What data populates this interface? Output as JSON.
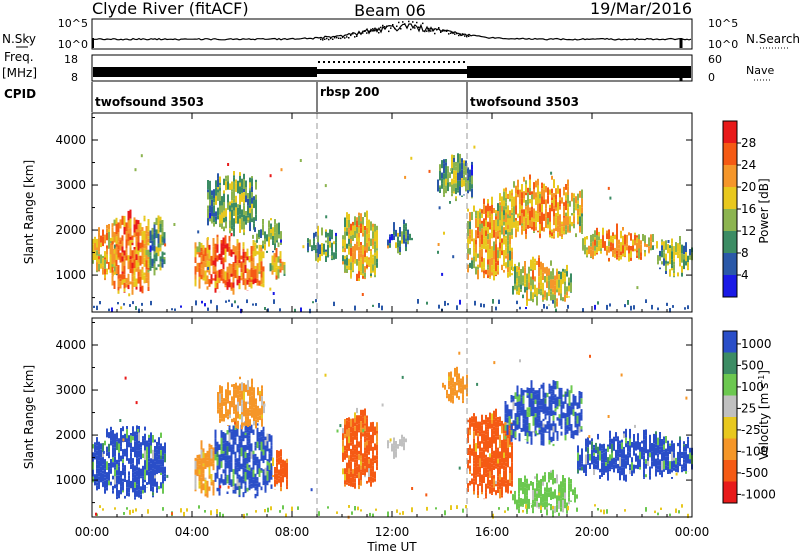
{
  "header": {
    "station": "Clyde River (fitACF)",
    "beam": "Beam 06",
    "date": "19/Mar/2016"
  },
  "noise_panel": {
    "left_label": "N.Sky",
    "right_label": "N.Search",
    "left_ticks": [
      "10^5",
      "10^0"
    ],
    "right_ticks": [
      "10^5",
      "10^0"
    ]
  },
  "freq_panel": {
    "left_label_line1": "Freq.",
    "left_label_line2": "[MHz]",
    "right_label": "Nave",
    "left_ticks": [
      "18",
      "8"
    ],
    "right_ticks": [
      "60",
      "0"
    ]
  },
  "cpid": {
    "label": "CPID",
    "segments": [
      {
        "name": "twofsound 3503",
        "start": 0,
        "end": 9
      },
      {
        "name": "rbsp 200",
        "start": 9,
        "end": 15
      },
      {
        "name": "twofsound 3503",
        "start": 15,
        "end": 24
      }
    ]
  },
  "power_colorbar": {
    "label": "Power [dB]",
    "ticks": [
      "28",
      "24",
      "20",
      "16",
      "12",
      "8",
      "4"
    ],
    "colors": [
      "#e81a1a",
      "#f55a14",
      "#f5962a",
      "#e8c81e",
      "#8cb450",
      "#3c8c64",
      "#2a58a8",
      "#1a1ae6"
    ]
  },
  "velocity_colorbar": {
    "label_main": "Velocity  [m s",
    "label_sup": "-1",
    "label_end": "]",
    "ticks": [
      "1000",
      "500",
      "100",
      "25",
      "-25",
      "-100",
      "-500",
      "-1000"
    ],
    "colors": [
      "#2a4ec8",
      "#3c8c64",
      "#6cc850",
      "#c0c0c0",
      "#e8c81e",
      "#f59628",
      "#f55a14",
      "#e81a1a"
    ]
  },
  "chart_data": [
    {
      "type": "heatmap",
      "title": "Power",
      "ylabel": "Slant Range [km]",
      "xlabel": "Time UT",
      "ylim": [
        180,
        4600
      ],
      "yticks": [
        1000,
        2000,
        3000,
        4000
      ],
      "xlim": [
        0,
        24
      ],
      "xticks": [
        "00:00",
        "04:00",
        "08:00",
        "12:00",
        "16:00",
        "20:00",
        "00:00"
      ],
      "blobs": [
        {
          "t0": 0.0,
          "t1": 1.0,
          "r0": 1000,
          "r1": 2000,
          "level": 0.6
        },
        {
          "t0": 0.7,
          "t1": 2.3,
          "r0": 650,
          "r1": 2300,
          "level": 0.72
        },
        {
          "t0": 2.3,
          "t1": 2.9,
          "r0": 1100,
          "r1": 2200,
          "level": 0.3
        },
        {
          "t0": 4.1,
          "t1": 6.9,
          "r0": 700,
          "r1": 1800,
          "level": 0.75
        },
        {
          "t0": 4.6,
          "t1": 6.6,
          "r0": 2000,
          "r1": 3200,
          "level": 0.35
        },
        {
          "t0": 6.4,
          "t1": 7.6,
          "r0": 1600,
          "r1": 2200,
          "level": 0.3
        },
        {
          "t0": 7.1,
          "t1": 7.7,
          "r0": 900,
          "r1": 1600,
          "level": 0.55
        },
        {
          "t0": 8.6,
          "t1": 9.8,
          "r0": 1400,
          "r1": 2000,
          "level": 0.3
        },
        {
          "t0": 10.0,
          "t1": 11.4,
          "r0": 1000,
          "r1": 2400,
          "level": 0.55
        },
        {
          "t0": 11.8,
          "t1": 12.8,
          "r0": 1600,
          "r1": 2100,
          "level": 0.25
        },
        {
          "t0": 13.8,
          "t1": 15.2,
          "r0": 2700,
          "r1": 3600,
          "level": 0.3
        },
        {
          "t0": 15.0,
          "t1": 16.8,
          "r0": 1000,
          "r1": 2600,
          "level": 0.6
        },
        {
          "t0": 16.2,
          "t1": 19.6,
          "r0": 1900,
          "r1": 3100,
          "level": 0.6
        },
        {
          "t0": 16.8,
          "t1": 19.2,
          "r0": 400,
          "r1": 1300,
          "level": 0.5
        },
        {
          "t0": 19.6,
          "t1": 22.6,
          "r0": 1400,
          "r1": 2000,
          "level": 0.6
        },
        {
          "t0": 22.6,
          "t1": 24.0,
          "r0": 1100,
          "r1": 1800,
          "level": 0.35
        }
      ]
    },
    {
      "type": "heatmap",
      "title": "Velocity",
      "ylabel": "Slant Range [km]",
      "xlabel": "Time UT",
      "ylim": [
        180,
        4600
      ],
      "yticks": [
        1000,
        2000,
        3000,
        4000
      ],
      "xlim": [
        0,
        24
      ],
      "xticks": [
        "00:00",
        "04:00",
        "08:00",
        "12:00",
        "16:00",
        "20:00",
        "00:00"
      ],
      "blobs": [
        {
          "t0": 0.0,
          "t1": 2.9,
          "r0": 700,
          "r1": 2100,
          "velocity": 900
        },
        {
          "t0": 4.1,
          "t1": 4.9,
          "r0": 700,
          "r1": 1800,
          "velocity": -200
        },
        {
          "t0": 4.9,
          "t1": 7.2,
          "r0": 700,
          "r1": 2200,
          "velocity": 800
        },
        {
          "t0": 5.0,
          "t1": 6.9,
          "r0": 2200,
          "r1": 3200,
          "velocity": -80
        },
        {
          "t0": 7.2,
          "t1": 7.8,
          "r0": 800,
          "r1": 1600,
          "velocity": -700
        },
        {
          "t0": 10.0,
          "t1": 11.4,
          "r0": 900,
          "r1": 2500,
          "velocity": -600
        },
        {
          "t0": 11.8,
          "t1": 12.6,
          "r0": 1600,
          "r1": 2000,
          "velocity": 20
        },
        {
          "t0": 14.0,
          "t1": 15.0,
          "r0": 2800,
          "r1": 3400,
          "velocity": -300
        },
        {
          "t0": 15.0,
          "t1": 16.8,
          "r0": 700,
          "r1": 2500,
          "velocity": -400
        },
        {
          "t0": 16.5,
          "t1": 19.6,
          "r0": 1900,
          "r1": 3100,
          "velocity": 800
        },
        {
          "t0": 16.8,
          "t1": 19.4,
          "r0": 300,
          "r1": 1100,
          "velocity": 60
        },
        {
          "t0": 19.4,
          "t1": 24.0,
          "r0": 1100,
          "r1": 2000,
          "velocity": 900
        }
      ]
    }
  ],
  "x_axis_title": "Time UT"
}
